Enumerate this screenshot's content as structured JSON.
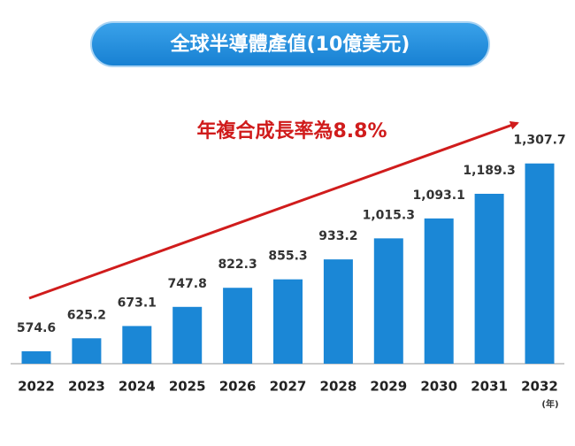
{
  "chart_data": {
    "type": "bar",
    "title": "全球半導體產值(10億美元)",
    "annotation": "年複合成長率為8.8%",
    "x_unit": "(年)",
    "categories": [
      "2022",
      "2023",
      "2024",
      "2025",
      "2026",
      "2027",
      "2028",
      "2029",
      "2030",
      "2031",
      "2032"
    ],
    "values": [
      574.6,
      625.2,
      673.1,
      747.8,
      822.3,
      855.3,
      933.2,
      1015.3,
      1093.1,
      1189.3,
      1307.7
    ],
    "value_labels": [
      "574.6",
      "625.2",
      "673.1",
      "747.8",
      "822.3",
      "855.3",
      "933.2",
      "1,015.3",
      "1,093.1",
      "1,189.3",
      "1,307.7"
    ],
    "color": "#1b87d6",
    "ylim": [
      526,
      1400
    ]
  }
}
